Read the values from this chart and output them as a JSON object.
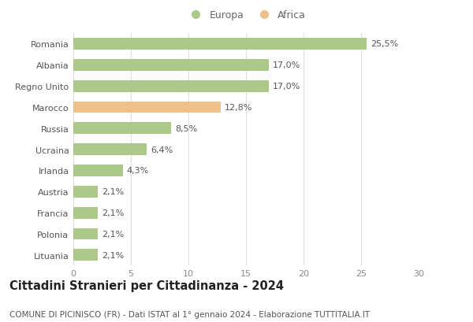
{
  "categories": [
    "Romania",
    "Albania",
    "Regno Unito",
    "Marocco",
    "Russia",
    "Ucraina",
    "Irlanda",
    "Austria",
    "Francia",
    "Polonia",
    "Lituania"
  ],
  "values": [
    25.5,
    17.0,
    17.0,
    12.8,
    8.5,
    6.4,
    4.3,
    2.1,
    2.1,
    2.1,
    2.1
  ],
  "labels": [
    "25,5%",
    "17,0%",
    "17,0%",
    "12,8%",
    "8,5%",
    "6,4%",
    "4,3%",
    "2,1%",
    "2,1%",
    "2,1%",
    "2,1%"
  ],
  "colors": [
    "#adc98a",
    "#adc98a",
    "#adc98a",
    "#f0c08a",
    "#adc98a",
    "#adc98a",
    "#adc98a",
    "#adc98a",
    "#adc98a",
    "#adc98a",
    "#adc98a"
  ],
  "legend": [
    {
      "label": "Europa",
      "color": "#adc98a"
    },
    {
      "label": "Africa",
      "color": "#f0c08a"
    }
  ],
  "xlim": [
    0,
    30
  ],
  "xticks": [
    0,
    5,
    10,
    15,
    20,
    25,
    30
  ],
  "title": "Cittadini Stranieri per Cittadinanza - 2024",
  "subtitle": "COMUNE DI PICINISCO (FR) - Dati ISTAT al 1° gennaio 2024 - Elaborazione TUTTITALIA.IT",
  "title_fontsize": 10.5,
  "subtitle_fontsize": 7.5,
  "label_fontsize": 8,
  "tick_fontsize": 8,
  "legend_fontsize": 9,
  "bg_color": "#ffffff",
  "grid_color": "#e0e0e0",
  "bar_height": 0.55
}
